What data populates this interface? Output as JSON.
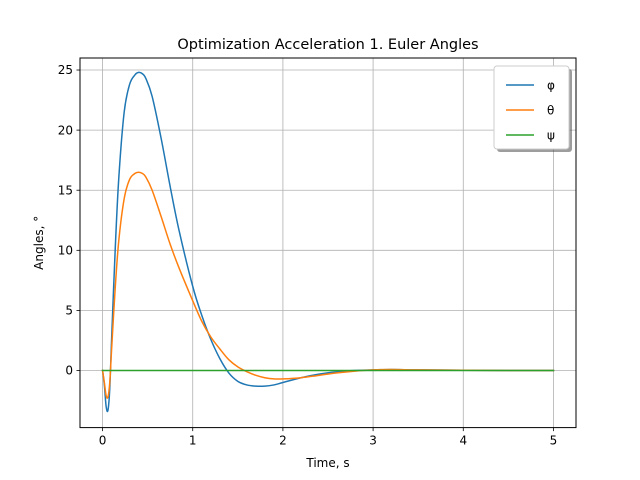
{
  "chart_data": {
    "type": "line",
    "title": "Optimization Acceleration 1. Euler Angles",
    "xlabel": "Time, s",
    "ylabel": "Angles, °",
    "xlim": [
      -0.25,
      5.25
    ],
    "ylim": [
      -4.75,
      26.0
    ],
    "xticks": [
      0,
      1,
      2,
      3,
      4,
      5
    ],
    "yticks": [
      0,
      5,
      10,
      15,
      20,
      25
    ],
    "grid": true,
    "legend_position": "top-right",
    "series": [
      {
        "name": "φ",
        "color": "#1f77b4",
        "x": [
          0,
          0.02,
          0.04,
          0.06,
          0.08,
          0.1,
          0.14,
          0.18,
          0.24,
          0.3,
          0.36,
          0.4,
          0.44,
          0.48,
          0.55,
          0.65,
          0.75,
          0.85,
          1.0,
          1.1,
          1.2,
          1.3,
          1.4,
          1.5,
          1.6,
          1.7,
          1.8,
          1.9,
          2.0,
          2.2,
          2.4,
          2.6,
          2.8,
          3.0,
          3.2,
          3.5,
          4.0,
          4.5,
          5.0
        ],
        "y": [
          0,
          -1.2,
          -3.0,
          -3.3,
          -1.5,
          2.5,
          10.0,
          16.0,
          21.5,
          23.8,
          24.6,
          24.8,
          24.7,
          24.3,
          22.8,
          19.3,
          15.3,
          11.6,
          7.0,
          4.6,
          2.6,
          1.0,
          -0.2,
          -0.9,
          -1.2,
          -1.3,
          -1.3,
          -1.2,
          -1.0,
          -0.6,
          -0.3,
          -0.1,
          0.0,
          0.05,
          0.08,
          0.05,
          0.02,
          0.0,
          0.0
        ]
      },
      {
        "name": "θ",
        "color": "#ff7f0e",
        "x": [
          0,
          0.02,
          0.04,
          0.06,
          0.08,
          0.1,
          0.14,
          0.18,
          0.24,
          0.3,
          0.36,
          0.4,
          0.44,
          0.48,
          0.55,
          0.65,
          0.75,
          0.85,
          1.0,
          1.1,
          1.2,
          1.3,
          1.4,
          1.5,
          1.6,
          1.7,
          1.8,
          1.9,
          2.0,
          2.2,
          2.4,
          2.6,
          2.8,
          3.0,
          3.2,
          3.5,
          4.0,
          4.5,
          5.0
        ],
        "y": [
          0,
          -1.0,
          -2.1,
          -2.2,
          -1.0,
          1.7,
          6.8,
          10.8,
          14.3,
          15.9,
          16.4,
          16.5,
          16.4,
          16.1,
          15.0,
          12.8,
          10.5,
          8.5,
          5.8,
          4.1,
          2.8,
          1.8,
          0.9,
          0.3,
          -0.1,
          -0.4,
          -0.6,
          -0.7,
          -0.7,
          -0.6,
          -0.4,
          -0.2,
          -0.05,
          0.05,
          0.08,
          0.05,
          0.02,
          0.0,
          0.0
        ]
      },
      {
        "name": "ψ",
        "color": "#2ca02c",
        "x": [
          0,
          0.5,
          1.0,
          2.0,
          3.0,
          4.0,
          5.0
        ],
        "y": [
          0,
          0,
          0,
          0,
          0,
          0,
          0
        ]
      }
    ]
  }
}
